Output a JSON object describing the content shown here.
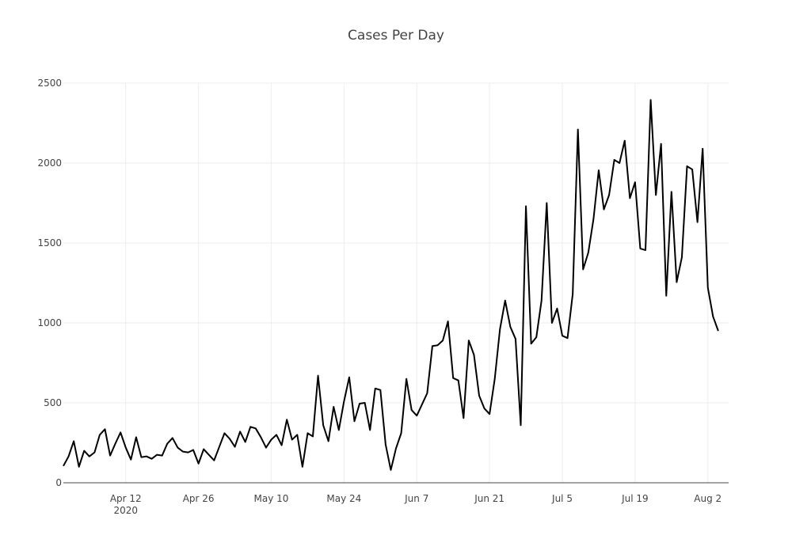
{
  "chart_data": {
    "type": "line",
    "title": "Cases Per Day",
    "xlabel": "",
    "ylabel": "",
    "start_date": "2020-03-31",
    "x_range": [
      "2020-03-31",
      "2020-08-06"
    ],
    "ylim": [
      0,
      2500
    ],
    "yticks": [
      0,
      500,
      1000,
      1500,
      2000,
      2500
    ],
    "ytick_labels": [
      "0",
      "500",
      "1000",
      "1500",
      "2000",
      "2500"
    ],
    "xticks": [
      {
        "date": "2020-04-12",
        "label": "Apr 12",
        "sublabel": "2020"
      },
      {
        "date": "2020-04-26",
        "label": "Apr 26",
        "sublabel": ""
      },
      {
        "date": "2020-05-10",
        "label": "May 10",
        "sublabel": ""
      },
      {
        "date": "2020-05-24",
        "label": "May 24",
        "sublabel": ""
      },
      {
        "date": "2020-06-07",
        "label": "Jun 7",
        "sublabel": ""
      },
      {
        "date": "2020-06-21",
        "label": "Jun 21",
        "sublabel": ""
      },
      {
        "date": "2020-07-05",
        "label": "Jul 5",
        "sublabel": ""
      },
      {
        "date": "2020-07-19",
        "label": "Jul 19",
        "sublabel": ""
      },
      {
        "date": "2020-08-02",
        "label": "Aug 2",
        "sublabel": ""
      }
    ],
    "grid": true,
    "line_color": "#000000",
    "series": [
      {
        "values": [
          105,
          165,
          260,
          100,
          200,
          165,
          190,
          300,
          335,
          170,
          245,
          315,
          220,
          145,
          285,
          160,
          165,
          150,
          175,
          170,
          245,
          280,
          220,
          195,
          190,
          205,
          120,
          210,
          175,
          140,
          225,
          310,
          275,
          225,
          320,
          255,
          350,
          340,
          285,
          220,
          270,
          300,
          235,
          395,
          270,
          300,
          100,
          310,
          290,
          670,
          360,
          260,
          475,
          330,
          510,
          660,
          385,
          495,
          500,
          330,
          590,
          580,
          240,
          80,
          215,
          310,
          650,
          455,
          420,
          490,
          560,
          855,
          860,
          890,
          1010,
          655,
          640,
          405,
          890,
          800,
          545,
          465,
          430,
          650,
          960,
          1140,
          975,
          900,
          360,
          1730,
          870,
          910,
          1140,
          1750,
          1000,
          1090,
          920,
          905,
          1180,
          2210,
          1335,
          1440,
          1650,
          1955,
          1710,
          1800,
          2020,
          2000,
          2140,
          1780,
          1880,
          1465,
          1455,
          2395,
          1800,
          2120,
          1170,
          1820,
          1255,
          1410,
          1980,
          1960,
          1630,
          2090,
          1220,
          1040,
          950
        ]
      }
    ]
  }
}
